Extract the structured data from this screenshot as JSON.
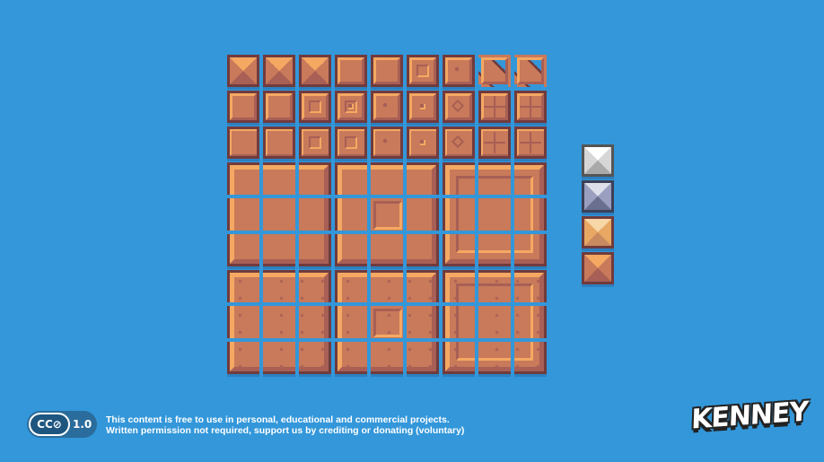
{
  "tiles": {
    "rows": [
      [
        "pyramid",
        "pyramid-worn",
        "pyramid-cracked",
        "bevel",
        "bevel-worn",
        "bevel-square",
        "bevel-marks",
        "slope-right",
        "slope-right-steep"
      ],
      [
        "bevel",
        "bevel-worn",
        "bevel-frame",
        "bevel-small-square",
        "bevel-dots",
        "bevel-nub",
        "bevel-diamond",
        "bevel-bricks",
        "bevel-bricks-wide"
      ],
      [
        "flat",
        "flat-worn",
        "flat-frame",
        "flat-frame-large",
        "flat-dots",
        "flat-nub",
        "flat-diamond",
        "flat-bricks",
        "flat-bricks-wide"
      ]
    ],
    "big_blocks": [
      [
        "big-bevel",
        "big-bevel-square",
        "big-frame"
      ],
      [
        "big-bevel-specks",
        "big-bevel-square-specks",
        "big-frame-specks"
      ]
    ],
    "side": [
      {
        "name": "silver",
        "light": "#ffffff",
        "mid": "#d6d6d6",
        "dark": "#a9a9a9",
        "border": "#555555"
      },
      {
        "name": "steel",
        "light": "#dde0ea",
        "mid": "#9a9fbf",
        "dark": "#6a6f8f",
        "border": "#3c4058"
      },
      {
        "name": "sand",
        "light": "#f7d6a8",
        "mid": "#e8a863",
        "dark": "#c98a5f",
        "border": "#703b3d"
      },
      {
        "name": "copper",
        "light": "#f5a862",
        "mid": "#c87a5a",
        "dark": "#a85f55",
        "border": "#703b3d"
      }
    ]
  },
  "footer": {
    "license_badge": "CC⊘",
    "license_version": "1.0",
    "line1": "This content is free to use in personal, educational and commercial projects.",
    "line2": "Written permission not required, support us by crediting or donating (voluntary)",
    "logo": "KENNEY"
  },
  "colors": {
    "background": "#3397da",
    "border": "#703b3d",
    "fill": "#c87a5a",
    "highlight": "#f5a862",
    "shadow": "#a85f55"
  }
}
